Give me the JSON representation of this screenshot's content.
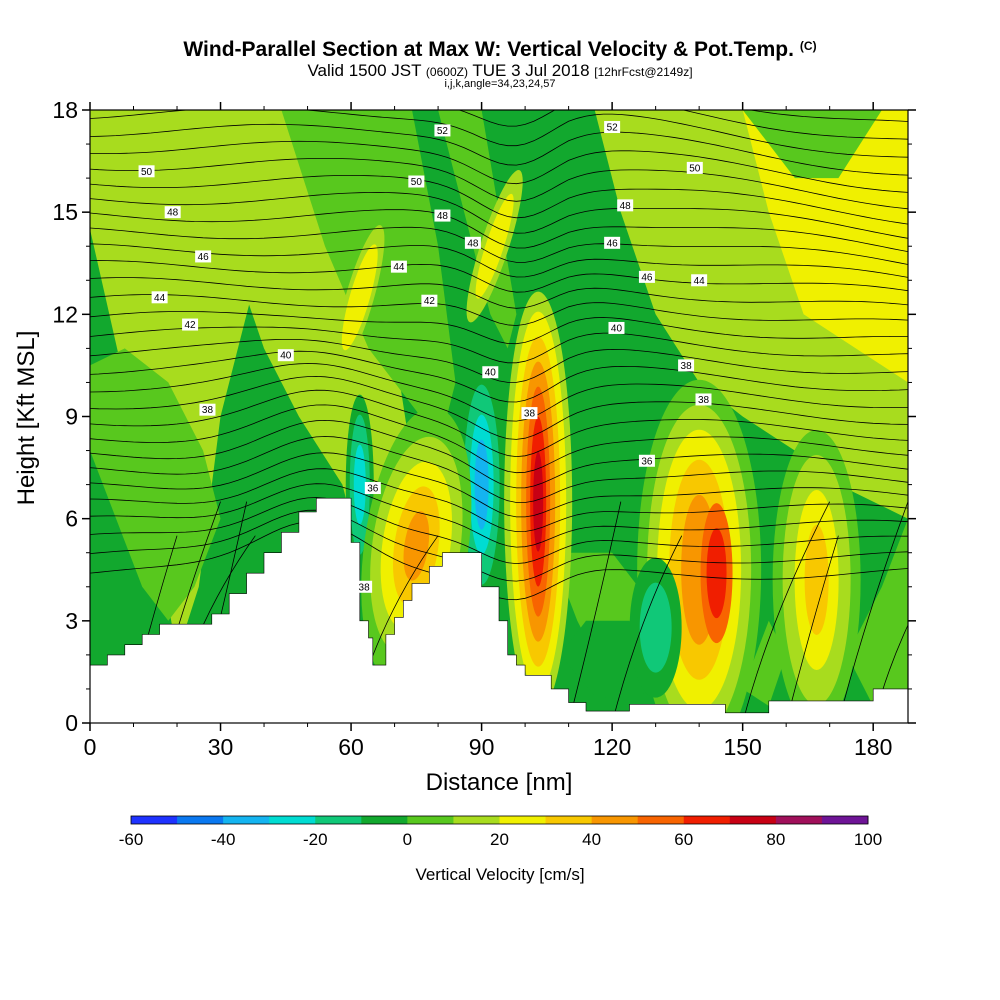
{
  "titles": {
    "title": "Wind-Parallel Section at Max W: Vertical Velocity & Pot.Temp.",
    "copyright": "(C)",
    "valid_prefix": "Valid 1500 JST",
    "valid_utc": "(0600Z)",
    "valid_date": "TUE 3 Jul 2018",
    "forecast": "[12hrFcst@2149z]",
    "ijk": "i,j,k,angle=34,23,24,57"
  },
  "chart_data": {
    "type": "contour",
    "xlabel": "Distance [nm]",
    "ylabel": "Height [Kft MSL]",
    "xlim": [
      0,
      188
    ],
    "ylim": [
      0,
      18
    ],
    "x_ticks": [
      "0",
      "30",
      "60",
      "90",
      "120",
      "150",
      "180"
    ],
    "y_ticks": [
      "0",
      "3",
      "6",
      "9",
      "12",
      "15",
      "18"
    ],
    "colorbar": {
      "title": "Vertical Velocity [cm/s]",
      "tick_labels": [
        "-60",
        "-40",
        "-20",
        "0",
        "20",
        "40",
        "60",
        "80",
        "100"
      ],
      "levels": [
        -60,
        -50,
        -40,
        -30,
        -20,
        -10,
        0,
        10,
        20,
        30,
        40,
        50,
        60,
        70,
        80,
        90,
        100
      ],
      "colors": [
        "#1e32ff",
        "#0a78f0",
        "#14b4f0",
        "#00dcd2",
        "#10c878",
        "#12a82e",
        "#58c81e",
        "#a8dc1e",
        "#f0f000",
        "#f8c800",
        "#f89600",
        "#f86400",
        "#f01e00",
        "#c80014",
        "#a0105a",
        "#6e1496"
      ]
    },
    "theta_label_values": [
      "52",
      "52",
      "50",
      "50",
      "50",
      "48",
      "48",
      "48",
      "48",
      "46",
      "46",
      "46",
      "44",
      "44",
      "44",
      "42",
      "42",
      "40",
      "40",
      "40",
      "38",
      "38",
      "38",
      "38",
      "36",
      "36",
      "38"
    ],
    "updraft_peak_cms": 90,
    "updraft_peak_x_nm": 103,
    "updraft_peak_height_kft": 7,
    "downdraft_min_cms": -50,
    "downdraft_min_x_nm": 92,
    "downdraft_min_height_kft": 6.5
  }
}
